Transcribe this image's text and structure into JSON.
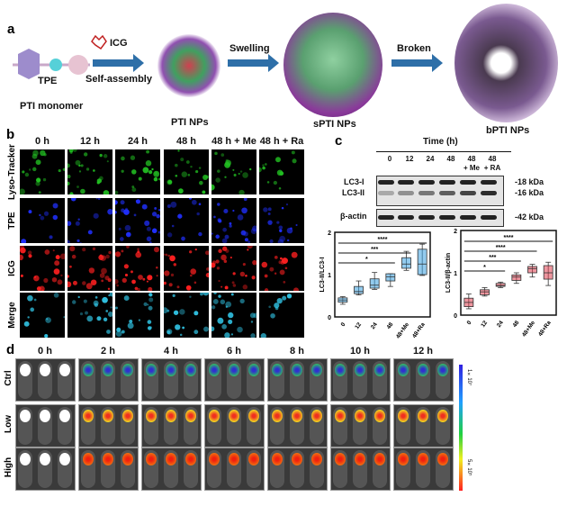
{
  "panel_a": {
    "label": "a",
    "monomer": "PTI monomer",
    "tpe": "TPE",
    "icg": "ICG",
    "step1": "Self-assembly",
    "np1": "PTI NPs",
    "step2": "Swelling",
    "np2": "sPTI NPs",
    "step3": "Broken",
    "np3": "bPTI NPs"
  },
  "panel_b": {
    "label": "b",
    "columns": [
      "0 h",
      "12 h",
      "24 h",
      "48 h",
      "48 h + Me",
      "48 h + Ra"
    ],
    "rows": [
      {
        "name": "Lyso-Tracker",
        "color": "#22c022"
      },
      {
        "name": "TPE",
        "color": "#2030ff"
      },
      {
        "name": "ICG",
        "color": "#ff2020"
      },
      {
        "name": "Merge",
        "color": "#30c0e0"
      }
    ]
  },
  "panel_c": {
    "label": "c",
    "time_header": "Time  (h)",
    "lanes": [
      "0",
      "12",
      "24",
      "48",
      "48\n+ Me",
      "48\n+ RA"
    ],
    "blot_rows": [
      "LC3-I",
      "LC3-II",
      "β-actin"
    ],
    "markers": [
      "-18 kDa",
      "-16 kDa",
      "-42 kDa"
    ]
  },
  "chart_data": [
    {
      "type": "box",
      "ylabel": "LC3-II/LC3-I",
      "categories": [
        "0",
        "12",
        "24",
        "48",
        "48+Me",
        "48+Ra"
      ],
      "ylim": [
        0,
        2
      ],
      "yticks": [
        "0",
        "1",
        "2"
      ],
      "color": "#3aa0e0",
      "boxes": [
        [
          0.3,
          0.35,
          0.4,
          0.45,
          0.48
        ],
        [
          0.52,
          0.55,
          0.6,
          0.72,
          0.85
        ],
        [
          0.65,
          0.68,
          0.75,
          0.9,
          1.05
        ],
        [
          0.72,
          0.85,
          0.95,
          1.02,
          1.02
        ],
        [
          1.1,
          1.15,
          1.25,
          1.4,
          1.55
        ],
        [
          0.98,
          1.0,
          1.25,
          1.6,
          1.72
        ]
      ],
      "significance": [
        {
          "from": "0",
          "to": "48",
          "label": "*"
        },
        {
          "from": "0",
          "to": "48+Me",
          "label": "***"
        },
        {
          "from": "0",
          "to": "48+Ra",
          "label": "****"
        }
      ]
    },
    {
      "type": "box",
      "ylabel": "LC3-II/β-actin",
      "categories": [
        "0",
        "12",
        "24",
        "48",
        "48+Me",
        "48+Ra"
      ],
      "ylim": [
        0,
        2
      ],
      "yticks": [
        "0",
        "1",
        "2"
      ],
      "color": "#e04050",
      "boxes": [
        [
          0.15,
          0.2,
          0.3,
          0.4,
          0.5
        ],
        [
          0.45,
          0.48,
          0.55,
          0.6,
          0.65
        ],
        [
          0.65,
          0.68,
          0.7,
          0.75,
          0.78
        ],
        [
          0.75,
          0.82,
          0.9,
          0.95,
          1.0
        ],
        [
          0.9,
          1.0,
          1.1,
          1.15,
          1.2
        ],
        [
          0.7,
          0.85,
          1.0,
          1.17,
          1.25
        ]
      ],
      "significance": [
        {
          "from": "0",
          "to": "24",
          "label": "*"
        },
        {
          "from": "0",
          "to": "48",
          "label": "***"
        },
        {
          "from": "0",
          "to": "48+Me",
          "label": "****"
        },
        {
          "from": "0",
          "to": "48+Ra",
          "label": "****"
        }
      ]
    }
  ],
  "panel_d": {
    "label": "d",
    "columns": [
      "0 h",
      "2 h",
      "4 h",
      "6 h",
      "8 h",
      "10 h",
      "12 h"
    ],
    "rows": [
      "Ctrl",
      "Low",
      "High"
    ],
    "colorbar_max": "1×10⁷",
    "colorbar_min": "5×10⁵"
  }
}
